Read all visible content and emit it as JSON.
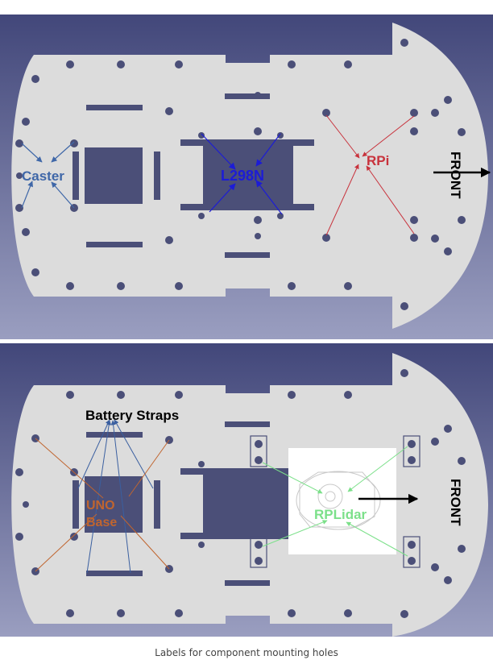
{
  "caption": "Labels for component mounting holes",
  "colors": {
    "background_top": "#4a4f7a",
    "background_bottom": "#8a8fb0",
    "plate": "#dcdcdc",
    "hole": "#4b4f78",
    "caster": "#3f67a8",
    "l298n": "#1c1cd6",
    "rpi": "#c8323c",
    "battery": "#3a5fa0",
    "uno": "#c0652f",
    "rplidar": "#7ce08a",
    "front_arrow": "#000000"
  },
  "top_diagram": {
    "labels": {
      "caster": "Caster",
      "l298n": "L298N",
      "rpi": "RPi",
      "front": "FRONT"
    }
  },
  "bottom_diagram": {
    "labels": {
      "battery_straps": "Battery Straps",
      "uno_line1": "UNO",
      "uno_line2": "Base",
      "rplidar": "RPLidar",
      "front": "FRONT"
    }
  }
}
